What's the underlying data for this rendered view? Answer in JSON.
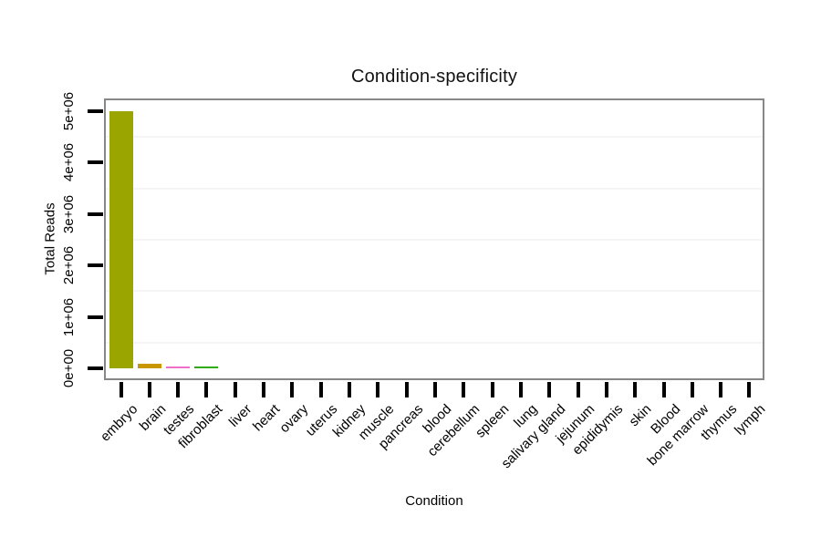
{
  "chart_data": {
    "type": "bar",
    "title": "Condition-specificity",
    "xlabel": "Condition",
    "ylabel": "Total Reads",
    "categories": [
      "embryo",
      "brain",
      "testes",
      "fibroblast",
      "liver",
      "heart",
      "ovary",
      "uterus",
      "kidney",
      "muscle",
      "pancreas",
      "blood",
      "cerebellum",
      "spleen",
      "lung",
      "salivary gland",
      "jejunum",
      "epididymis",
      "skin",
      "Blood",
      "bone marrow",
      "thymus",
      "lymph"
    ],
    "values": [
      5000000,
      90000,
      30000,
      27000,
      0,
      0,
      0,
      0,
      0,
      0,
      0,
      0,
      0,
      0,
      0,
      0,
      0,
      0,
      0,
      0,
      0,
      0,
      0
    ],
    "bar_colors": [
      "#9aa500",
      "#c89600",
      "#ef6fc9",
      "#31ab14",
      null,
      null,
      null,
      null,
      null,
      null,
      null,
      null,
      null,
      null,
      null,
      null,
      null,
      null,
      null,
      null,
      null,
      null,
      null
    ],
    "ylim": [
      0,
      5000000
    ],
    "y_tick_labels": [
      "0e+00",
      "1e+06",
      "2e+06",
      "3e+06",
      "4e+06",
      "5e+06"
    ],
    "y_tick_values": [
      0,
      1000000,
      2000000,
      3000000,
      4000000,
      5000000
    ],
    "minor_grid_values": [
      500000,
      1500000,
      2500000,
      3500000,
      4500000
    ],
    "legend": "none",
    "grid": "minor-horizontal"
  },
  "colors": {
    "plot_border": "#878787",
    "tick": "#000000",
    "gridline": "#f5f5f5",
    "background": "#ffffff",
    "embryo_bar": "#9aa500",
    "brain_bar": "#c89600",
    "testes_bar": "#ef6fc9",
    "fibroblast_bar": "#31ab14"
  }
}
